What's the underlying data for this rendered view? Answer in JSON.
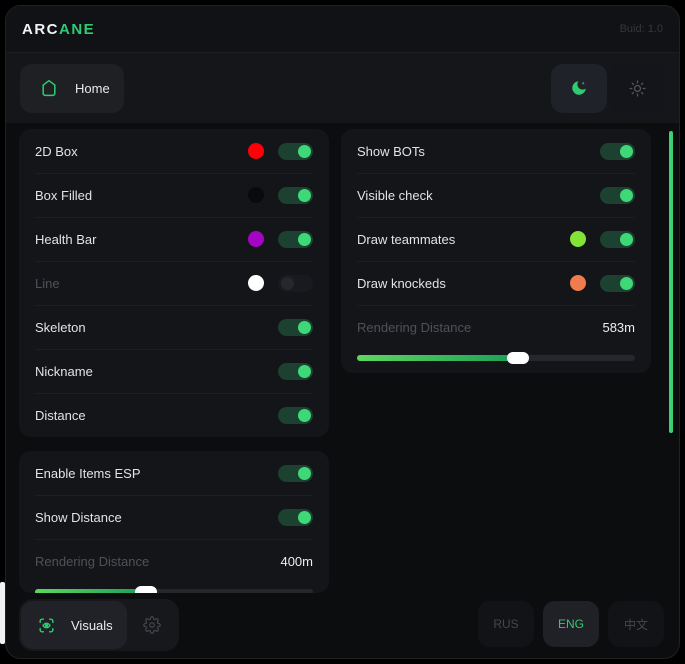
{
  "colors": {
    "accent": "#2ecc71",
    "toggle_knob": "#3fd878",
    "scrollbar": "#3ecf74",
    "slider_fill_start": "#5dd75f",
    "slider_fill_end": "#1b9e57"
  },
  "header": {
    "logo_primary": "ARC",
    "logo_accent": "ANE",
    "build": "Buid: 1.0"
  },
  "toolbar": {
    "home_tab": "Home",
    "theme": {
      "active": "dark",
      "moon_icon": "moon-icon",
      "sun_icon": "sun-icon"
    }
  },
  "panels": {
    "esp": {
      "rows": [
        {
          "label": "2D Box",
          "swatch": "#ff0008",
          "enabled": true
        },
        {
          "label": "Box Filled",
          "swatch": "#0a0a0c",
          "enabled": true
        },
        {
          "label": "Health Bar",
          "swatch": "#a404c4",
          "enabled": true
        },
        {
          "label": "Line",
          "swatch": "#ffffff",
          "enabled": false
        },
        {
          "label": "Skeleton",
          "enabled": true
        },
        {
          "label": "Nickname",
          "enabled": true
        },
        {
          "label": "Distance",
          "enabled": true
        }
      ]
    },
    "items": {
      "rows": [
        {
          "label": "Enable Items ESP",
          "enabled": true
        },
        {
          "label": "Show Distance",
          "enabled": true
        }
      ],
      "slider": {
        "label": "Rendering Distance",
        "value": "400m",
        "percent": 40
      }
    },
    "bots": {
      "rows": [
        {
          "label": "Show BOTs",
          "enabled": true
        },
        {
          "label": "Visible check",
          "enabled": true
        },
        {
          "label": "Draw teammates",
          "swatch": "#83e337",
          "enabled": true
        },
        {
          "label": "Draw knockeds",
          "swatch": "#f07b4c",
          "enabled": true
        }
      ],
      "slider": {
        "label": "Rendering Distance",
        "value": "583m",
        "percent": 58
      }
    }
  },
  "footer": {
    "visuals_label": "Visuals",
    "languages": [
      {
        "label": "RUS",
        "active": false
      },
      {
        "label": "ENG",
        "active": true
      },
      {
        "label": "中文",
        "active": false
      }
    ]
  }
}
